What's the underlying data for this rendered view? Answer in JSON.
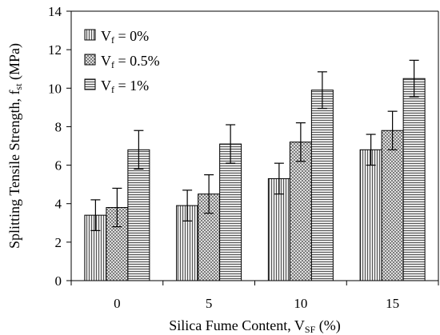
{
  "chart_data": {
    "type": "bar",
    "xlabel": "Silica Fume Content, V",
    "xlabel_sub": "SF",
    "xlabel_suffix": " (%)",
    "ylabel": "Splitting Tensile Strength, f",
    "ylabel_sub": "st",
    "ylabel_suffix": " (MPa)",
    "categories": [
      "0",
      "5",
      "10",
      "15"
    ],
    "ylim": [
      0,
      14
    ],
    "yticks": [
      0,
      2,
      4,
      6,
      8,
      10,
      12,
      14
    ],
    "grid": false,
    "legend_position": "top-left",
    "series": [
      {
        "name": "V",
        "name_sub": "f",
        "name_suffix": " = 0%",
        "pattern": "vertical-lines",
        "values": [
          3.4,
          3.9,
          5.3,
          6.8
        ],
        "error": [
          0.8,
          0.8,
          0.8,
          0.8
        ]
      },
      {
        "name": "V",
        "name_sub": "f",
        "name_suffix": " = 0.5%",
        "pattern": "crosshatch",
        "values": [
          3.8,
          4.5,
          7.2,
          7.8
        ],
        "error": [
          1.0,
          1.0,
          1.0,
          1.0
        ]
      },
      {
        "name": "V",
        "name_sub": "f",
        "name_suffix": " = 1%",
        "pattern": "horizontal-lines",
        "values": [
          6.8,
          7.1,
          9.9,
          10.5
        ],
        "error": [
          1.0,
          1.0,
          0.95,
          0.95
        ]
      }
    ],
    "colors": {
      "axis": "#000000",
      "bar_fill": "#d9d9d9",
      "pattern_line": "#000000",
      "background": "#ffffff"
    }
  }
}
